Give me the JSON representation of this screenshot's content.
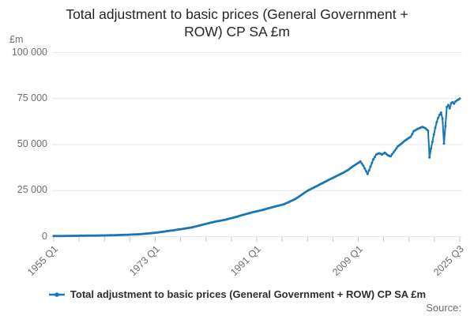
{
  "title": "Total adjustment to basic prices (General Government + ROW) CP SA £m",
  "y_axis_unit": "£m",
  "source_label": "Source:",
  "legend": {
    "label": "Total adjustment to basic prices (General Government + ROW) CP SA £m"
  },
  "colors": {
    "line": "#1776b8",
    "grid": "#e6e6e6",
    "tick": "#bcc8da",
    "axis_text": "#6e6e6e",
    "title_text": "#262626",
    "legend_text": "#2e2e2e"
  },
  "chart_data": {
    "type": "line",
    "title": "Total adjustment to basic prices (General Government + ROW) CP SA £m",
    "xlabel": "",
    "ylabel": "£m",
    "ylim": [
      0,
      100000
    ],
    "grid": "horizontal",
    "legend_position": "bottom",
    "frequency": "quarterly",
    "x_range_decimal_years": [
      1955.0,
      2025.5
    ],
    "x_tick_labels": [
      "1955 Q1",
      "1973 Q1",
      "1991 Q1",
      "2009 Q1",
      "2025 Q3"
    ],
    "x_minor_tick_count": 17,
    "y_tick_values": [
      0,
      25000,
      50000,
      75000,
      100000
    ],
    "y_tick_labels": [
      "0",
      "25 000",
      "50 000",
      "75 000",
      "100 000"
    ],
    "series": [
      {
        "name": "Total adjustment to basic prices (General Government + ROW) CP SA £m",
        "color": "#1776b8",
        "markers": true,
        "anchors_decimal_year_value": [
          [
            1955,
            300
          ],
          [
            1958,
            400
          ],
          [
            1961,
            520
          ],
          [
            1964,
            660
          ],
          [
            1967,
            900
          ],
          [
            1970,
            1300
          ],
          [
            1973,
            2200
          ],
          [
            1975,
            3100
          ],
          [
            1977,
            4000
          ],
          [
            1979,
            5000
          ],
          [
            1981,
            6600
          ],
          [
            1983,
            8100
          ],
          [
            1985,
            9300
          ],
          [
            1987,
            11000
          ],
          [
            1989,
            12800
          ],
          [
            1991,
            14300
          ],
          [
            1993,
            16000
          ],
          [
            1995,
            17600
          ],
          [
            1997,
            20500
          ],
          [
            1999,
            24800
          ],
          [
            2001,
            28000
          ],
          [
            2003,
            31200
          ],
          [
            2005,
            34300
          ],
          [
            2006,
            36000
          ],
          [
            2007,
            38300
          ],
          [
            2008.25,
            40800
          ],
          [
            2008.75,
            38500
          ],
          [
            2009.5,
            34000
          ],
          [
            2010,
            38000
          ],
          [
            2010.5,
            42000
          ],
          [
            2011,
            44600
          ],
          [
            2011.5,
            45300
          ],
          [
            2012,
            44600
          ],
          [
            2012.5,
            45600
          ],
          [
            2013,
            44200
          ],
          [
            2013.5,
            43600
          ],
          [
            2014,
            45800
          ],
          [
            2014.75,
            49000
          ],
          [
            2015.5,
            50800
          ],
          [
            2016,
            52200
          ],
          [
            2017,
            54300
          ],
          [
            2017.5,
            57300
          ],
          [
            2018.25,
            58600
          ],
          [
            2019,
            59600
          ],
          [
            2019.5,
            58900
          ],
          [
            2020,
            57500
          ],
          [
            2020.25,
            43000
          ],
          [
            2020.5,
            47800
          ],
          [
            2020.75,
            51500
          ],
          [
            2021,
            55500
          ],
          [
            2021.25,
            59100
          ],
          [
            2021.5,
            62200
          ],
          [
            2021.75,
            64600
          ],
          [
            2022,
            66200
          ],
          [
            2022.25,
            67400
          ],
          [
            2022.5,
            64000
          ],
          [
            2022.75,
            50500
          ],
          [
            2023,
            60000
          ],
          [
            2023.25,
            70400
          ],
          [
            2023.5,
            71500
          ],
          [
            2023.75,
            69700
          ],
          [
            2024,
            72500
          ],
          [
            2024.25,
            73100
          ],
          [
            2024.5,
            72200
          ],
          [
            2024.75,
            73400
          ],
          [
            2025,
            74000
          ],
          [
            2025.25,
            74400
          ],
          [
            2025.5,
            75000
          ]
        ]
      }
    ]
  }
}
